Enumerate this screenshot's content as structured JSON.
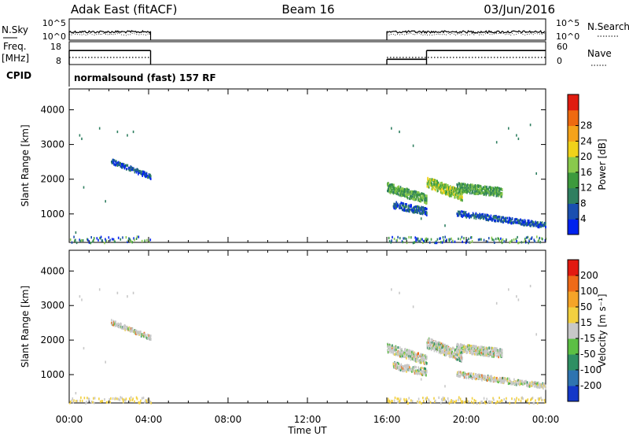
{
  "header": {
    "station": "Adak East (fitACF)",
    "beam": "Beam 16",
    "date": "03/Jun/2016"
  },
  "side_labels": {
    "nsky": "N.Sky",
    "nsearch": "N.Search",
    "freq_line1": "Freq.",
    "freq_line2": "[MHz]",
    "nave": "Nave",
    "cpid": "CPID",
    "cpid_text": "normalsound (fast) 157 RF"
  },
  "small_panel_ticks": {
    "noise_left": [
      "10^5",
      "10^0"
    ],
    "noise_right": [
      "10^5",
      "10^0"
    ],
    "freq_left": [
      "18",
      "8"
    ],
    "freq_right": [
      "60",
      "0"
    ]
  },
  "colors": {
    "power_scale": [
      "#0022ee",
      "#1a4fb0",
      "#2f7f60",
      "#3d9a3d",
      "#89c94c",
      "#f0d21a",
      "#f5a31a",
      "#ee6a10",
      "#e01c10"
    ],
    "velocity_scale": [
      "#1438c8",
      "#2f74b0",
      "#2f8f63",
      "#5cbf44",
      "#c8c8c8",
      "#f2d040",
      "#f5a428",
      "#ee6a18",
      "#e21a10"
    ]
  },
  "chart_data": [
    {
      "type": "heatmap",
      "name_panel": "power",
      "ylabel": "Slant Range [km]",
      "ylim": [
        180,
        4600
      ],
      "yticks": [
        "1000",
        "2000",
        "3000",
        "4000"
      ],
      "xlim_hours": [
        0,
        24
      ],
      "xticks": [
        "00:00",
        "04:00",
        "08:00",
        "12:00",
        "16:00",
        "20:00",
        "00:00"
      ],
      "colorbar_label": "Power [dB]",
      "colorbar_ticks": [
        "4",
        "8",
        "12",
        "16",
        "20",
        "24",
        "28"
      ],
      "colorbar_range": [
        0,
        32
      ],
      "data_gaps_hours": [
        [
          4.1,
          16.0
        ]
      ],
      "echo_regions": [
        {
          "t0": 2.1,
          "t1": 4.1,
          "r_start": 2550,
          "r_end": 2100,
          "width": 130,
          "level": 1
        },
        {
          "t0": 16.0,
          "t1": 18.0,
          "r_start": 1800,
          "r_end": 1450,
          "width": 260,
          "level": 3
        },
        {
          "t0": 18.0,
          "t1": 19.8,
          "r_start": 1950,
          "r_end": 1550,
          "width": 300,
          "level": 4
        },
        {
          "t0": 19.5,
          "t1": 21.8,
          "r_start": 1800,
          "r_end": 1650,
          "width": 250,
          "level": 3
        },
        {
          "t0": 19.5,
          "t1": 24.0,
          "r_start": 1050,
          "r_end": 700,
          "width": 150,
          "level": 1
        },
        {
          "t0": 16.3,
          "t1": 18.0,
          "r_start": 1300,
          "r_end": 1100,
          "width": 200,
          "level": 1
        }
      ]
    },
    {
      "type": "heatmap",
      "name_panel": "velocity",
      "ylabel": "Slant Range [km]",
      "ylim": [
        180,
        4600
      ],
      "yticks": [
        "1000",
        "2000",
        "3000",
        "4000"
      ],
      "xlim_hours": [
        0,
        24
      ],
      "xticks": [
        "00:00",
        "04:00",
        "08:00",
        "12:00",
        "16:00",
        "20:00",
        "00:00"
      ],
      "xlabel": "Time UT",
      "colorbar_label": "Velocity [m s⁻¹]",
      "colorbar_ticks": [
        "200",
        "100",
        "50",
        "15",
        "-15",
        "-50",
        "-100",
        "-200"
      ],
      "data_gaps_hours": [
        [
          4.1,
          16.0
        ]
      ],
      "echo_regions": [
        {
          "t0": 2.1,
          "t1": 4.1,
          "r_start": 2550,
          "r_end": 2100,
          "width": 130,
          "level": 4
        },
        {
          "t0": 16.0,
          "t1": 18.0,
          "r_start": 1800,
          "r_end": 1450,
          "width": 260,
          "level": 4
        },
        {
          "t0": 18.0,
          "t1": 19.8,
          "r_start": 1950,
          "r_end": 1550,
          "width": 300,
          "level": 4
        },
        {
          "t0": 19.5,
          "t1": 21.8,
          "r_start": 1800,
          "r_end": 1650,
          "width": 250,
          "level": 4
        },
        {
          "t0": 19.5,
          "t1": 24.0,
          "r_start": 1050,
          "r_end": 700,
          "width": 150,
          "level": 4
        },
        {
          "t0": 16.3,
          "t1": 18.0,
          "r_start": 1300,
          "r_end": 1100,
          "width": 200,
          "level": 4
        }
      ]
    },
    {
      "type": "line",
      "name_panel": "freq_nave",
      "series": [
        {
          "name": "Freq.",
          "segments": [
            {
              "t0": 0,
              "t1": 4.1,
              "value": 13
            },
            {
              "t0": 16.0,
              "t1": 18.0,
              "value": 8
            },
            {
              "t0": 18.0,
              "t1": 24.0,
              "value": 13
            }
          ]
        },
        {
          "name": "Nave",
          "segments": [
            {
              "t0": 0,
              "t1": 4.1,
              "value": 10
            },
            {
              "t0": 16.0,
              "t1": 24.0,
              "value": 10
            }
          ]
        }
      ]
    }
  ]
}
